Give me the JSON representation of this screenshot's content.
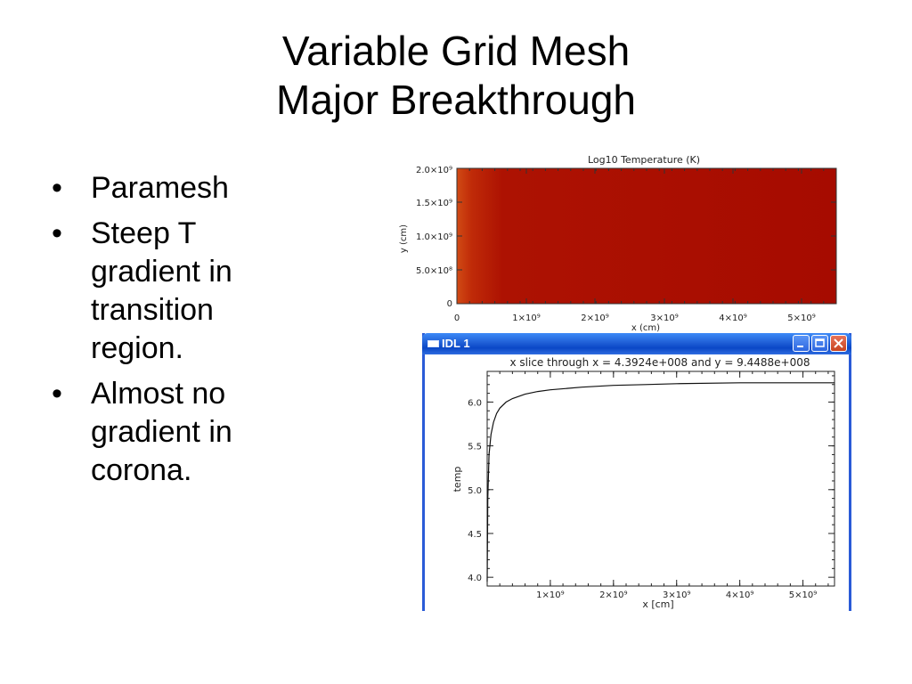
{
  "slide": {
    "title_line1": "Variable Grid Mesh",
    "title_line2": "Major Breakthrough",
    "bullets": [
      {
        "marker": "•",
        "lines": [
          "Paramesh"
        ]
      },
      {
        "marker": "•",
        "lines": [
          "Steep T",
          "gradient in",
          "transition",
          "region."
        ]
      },
      {
        "marker": "•",
        "lines": [
          "Almost no",
          "gradient in",
          "corona."
        ]
      }
    ]
  },
  "temperature_map": {
    "title": "Log10 Temperature (K)",
    "xlabel": "x (cm)",
    "ylabel": "y (cm)",
    "x_ticks": [
      "0",
      "1×10⁹",
      "2×10⁹",
      "3×10⁹",
      "4×10⁹",
      "5×10⁹"
    ],
    "y_ticks": [
      "0",
      "5.0×10⁸",
      "1.0×10⁹",
      "1.5×10⁹",
      "2.0×10⁹"
    ],
    "colors": {
      "left_edge": "#d14a14",
      "body": "#a60b00"
    }
  },
  "idl_window": {
    "title": "IDL 1",
    "buttons": [
      "minimize",
      "maximize",
      "close"
    ]
  },
  "chart_data": {
    "type": "line",
    "title": "x slice through x =   4.3924e+008  and y =   9.4488e+008",
    "xlabel": "x [cm]",
    "ylabel": "temp",
    "xlim": [
      0,
      5500000000.0
    ],
    "ylim": [
      3.9,
      6.35
    ],
    "x_ticks": [
      "1×10⁹",
      "2×10⁹",
      "3×10⁹",
      "4×10⁹",
      "5×10⁹"
    ],
    "y_ticks": [
      "4.0",
      "4.5",
      "5.0",
      "5.5",
      "6.0"
    ],
    "series": [
      {
        "x": [
          0,
          10000000.0,
          30000000.0,
          60000000.0,
          100000000.0,
          150000000.0,
          200000000.0,
          300000000.0,
          400000000.0,
          600000000.0,
          800000000.0,
          1000000000.0,
          1500000000.0,
          2000000000.0,
          2500000000.0,
          3000000000.0,
          4000000000.0,
          5000000000.0,
          5500000000.0
        ],
        "y": [
          3.95,
          4.9,
          5.4,
          5.63,
          5.77,
          5.87,
          5.93,
          6.0,
          6.04,
          6.09,
          6.12,
          6.14,
          6.17,
          6.19,
          6.2,
          6.21,
          6.22,
          6.22,
          6.22
        ]
      }
    ]
  }
}
